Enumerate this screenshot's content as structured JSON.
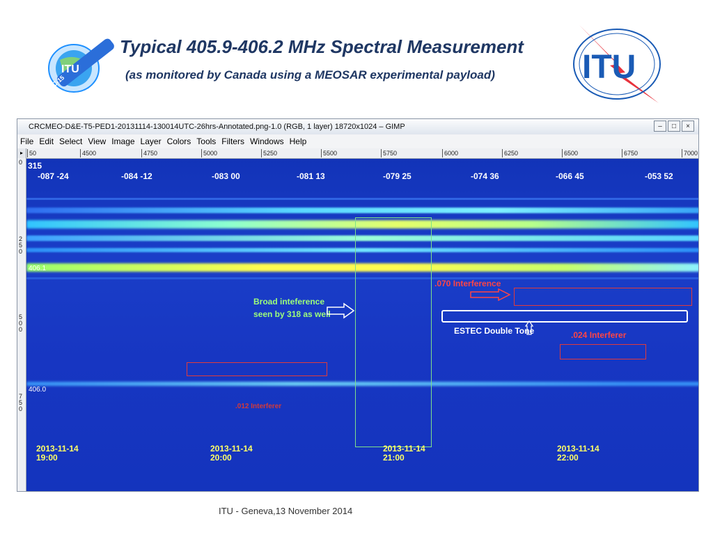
{
  "slide": {
    "title": "Typical 405.9-406.2 MHz Spectral Measurement",
    "subtitle": "(as monitored by Canada using a MEOSAR experimental payload)",
    "left_logo_text": "ITU",
    "left_logo_ring": "WRC-15",
    "right_logo_text": "ITU",
    "footer": "ITU - Geneva,13 November 2014"
  },
  "gimp": {
    "title": "CRCMEO-D&E-T5-PED1-20131114-130014UTC-26hrs-Annotated.png-1.0 (RGB, 1 layer) 18720x1024 – GIMP",
    "window_controls": [
      "–",
      "□",
      "×"
    ],
    "menu": [
      "File",
      "Edit",
      "Select",
      "View",
      "Image",
      "Layer",
      "Colors",
      "Tools",
      "Filters",
      "Windows",
      "Help"
    ],
    "ruler_top": [
      "50",
      "4500",
      "4750",
      "5000",
      "5250",
      "5500",
      "5750",
      "6000",
      "6250",
      "6500",
      "6750",
      "7000"
    ],
    "ruler_corner": "▸",
    "ruler_left": [
      "0",
      "250",
      "500",
      "750"
    ]
  },
  "spectrogram": {
    "corner_label": "315",
    "coords": [
      "-087 -24",
      "-084 -12",
      "-083 00",
      "-081 13",
      "-079 25",
      "-074 36",
      "-066 45",
      "-053 52"
    ],
    "freq_labels": [
      "406.1",
      "406.0"
    ],
    "times": [
      {
        "date": "2013-11-14",
        "time": "19:00"
      },
      {
        "date": "2013-11-14",
        "time": "20:00"
      },
      {
        "date": "2013-11-14",
        "time": "21:00"
      },
      {
        "date": "2013-11-14",
        "time": "22:00"
      }
    ],
    "annotations": {
      "broad_line1": "Broad inteference",
      "broad_line2": "seen by 318 as well",
      "interference_070": ".070 Interference",
      "estec": "ESTEC Double Tone",
      "interferer_024": ".024 Interferer",
      "interferer_bottom": ".012 Interferer"
    }
  }
}
